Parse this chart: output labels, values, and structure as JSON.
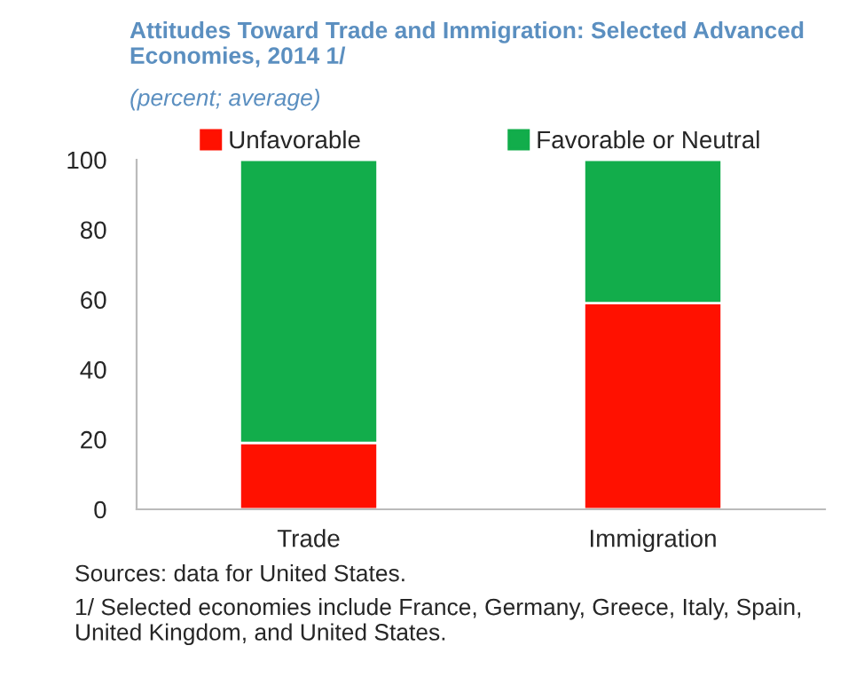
{
  "chart_data": {
    "type": "bar",
    "title": "Attitudes Toward Trade and Immigration: Selected Advanced Economies, 2014 1/",
    "subtitle": "(percent; average)",
    "categories": [
      "Trade",
      "Immigration"
    ],
    "stacked": true,
    "series": [
      {
        "name": "Unfavorable",
        "color": "#ff1100",
        "values": [
          19,
          59
        ]
      },
      {
        "name": "Favorable or Neutral",
        "color": "#12ad4b",
        "values": [
          81,
          41
        ]
      }
    ],
    "ylim": [
      0,
      100
    ],
    "yticks": [
      0,
      20,
      40,
      60,
      80,
      100
    ],
    "grid": false,
    "legend": "top",
    "annotations": [
      "Sources: data for United States.",
      "1/ Selected economies include France, Germany, Greece, Italy, Spain, United Kingdom, and United States."
    ]
  }
}
